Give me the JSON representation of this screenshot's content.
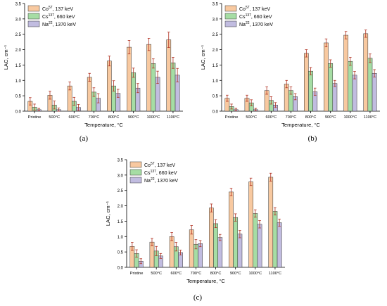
{
  "colors": {
    "co": "#F8C9A0",
    "cs": "#A6DDA4",
    "na": "#C1BCE0",
    "stroke": "#333333",
    "err": "#B03020"
  },
  "chart_data": [
    {
      "type": "bar",
      "panel_label": "(a)",
      "xlabel": "Temperature, °C",
      "ylabel": "LAC, cm⁻¹",
      "ylim": [
        0,
        3.5
      ],
      "yticks": [
        "0.0",
        "0.5",
        "1.0",
        "1.5",
        "2.0",
        "2.5",
        "3.0",
        "3.5"
      ],
      "categories": [
        "Pristine",
        "500°C",
        "600°C",
        "700°C",
        "800°C",
        "900°C",
        "1000°C",
        "1100°C"
      ],
      "legend": [
        {
          "base": "Co",
          "sup": "57",
          "rest": ", 137 keV"
        },
        {
          "base": "Cs",
          "sup": "137",
          "rest": ", 660 keV"
        },
        {
          "base": "Na",
          "sup": "22",
          "rest": ", 1370 keV"
        }
      ],
      "series": [
        {
          "values": [
            0.32,
            0.52,
            0.82,
            1.1,
            1.63,
            2.08,
            2.17,
            2.32
          ],
          "errors": [
            0.12,
            0.13,
            0.13,
            0.13,
            0.16,
            0.22,
            0.2,
            0.25
          ]
        },
        {
          "values": [
            0.13,
            0.2,
            0.32,
            0.62,
            0.82,
            1.25,
            1.55,
            1.57
          ],
          "errors": [
            0.1,
            0.13,
            0.13,
            0.14,
            0.17,
            0.15,
            0.15,
            0.18
          ]
        },
        {
          "values": [
            0.05,
            0.05,
            0.12,
            0.42,
            0.58,
            0.75,
            1.1,
            1.17
          ],
          "errors": [
            0.04,
            0.05,
            0.1,
            0.15,
            0.13,
            0.15,
            0.2,
            0.22
          ]
        }
      ]
    },
    {
      "type": "bar",
      "panel_label": "(b)",
      "xlabel": "Temperature, °C",
      "ylabel": "LAC, cm⁻¹",
      "ylim": [
        0,
        3.5
      ],
      "yticks": [
        "0.0",
        "0.5",
        "1.0",
        "1.5",
        "2.0",
        "2.5",
        "3.0",
        "3.5"
      ],
      "categories": [
        "Pristine",
        "500°C",
        "600°C",
        "700°C",
        "800°C",
        "900°C",
        "1000°C",
        "1100°C"
      ],
      "legend": [
        {
          "base": "Co",
          "sup": "57",
          "rest": ", 137 keV"
        },
        {
          "base": "Cs",
          "sup": "137",
          "rest": ", 660 keV"
        },
        {
          "base": "Na",
          "sup": "22",
          "rest": ", 1370 keV"
        }
      ],
      "series": [
        {
          "values": [
            0.42,
            0.42,
            0.67,
            0.88,
            1.88,
            2.22,
            2.47,
            2.52
          ],
          "errors": [
            0.1,
            0.1,
            0.12,
            0.12,
            0.12,
            0.13,
            0.12,
            0.12
          ]
        },
        {
          "values": [
            0.15,
            0.27,
            0.35,
            0.67,
            1.3,
            1.55,
            1.62,
            1.72
          ],
          "errors": [
            0.08,
            0.1,
            0.12,
            0.12,
            0.12,
            0.12,
            0.13,
            0.14
          ]
        },
        {
          "values": [
            0.05,
            0.05,
            0.2,
            0.47,
            0.63,
            0.9,
            1.17,
            1.23
          ],
          "errors": [
            0.04,
            0.04,
            0.08,
            0.1,
            0.12,
            0.1,
            0.12,
            0.12
          ]
        }
      ]
    },
    {
      "type": "bar",
      "panel_label": "(c)",
      "xlabel": "Temperature, °C",
      "ylabel": "LAC, cm⁻¹",
      "ylim": [
        0,
        3.5
      ],
      "yticks": [
        "0.0",
        "0.5",
        "1.0",
        "1.5",
        "2.0",
        "2.5",
        "3.0",
        "3.5"
      ],
      "categories": [
        "Pristine",
        "500°C",
        "600°C",
        "700°C",
        "800°C",
        "900°C",
        "1000°C",
        "1100°C"
      ],
      "legend": [
        {
          "base": "Co",
          "sup": "57",
          "rest": ", 137 keV"
        },
        {
          "base": "Cs",
          "sup": "137",
          "rest": ", 660 keV"
        },
        {
          "base": "Na",
          "sup": "22",
          "rest": ", 1370 keV"
        }
      ],
      "series": [
        {
          "values": [
            0.68,
            0.82,
            1.0,
            1.22,
            1.93,
            2.45,
            2.78,
            2.93
          ],
          "errors": [
            0.13,
            0.12,
            0.13,
            0.14,
            0.13,
            0.12,
            0.12,
            0.13
          ]
        },
        {
          "values": [
            0.45,
            0.53,
            0.67,
            0.75,
            1.42,
            1.62,
            1.75,
            1.82
          ],
          "errors": [
            0.12,
            0.15,
            0.14,
            0.15,
            0.13,
            0.12,
            0.12,
            0.12
          ]
        },
        {
          "values": [
            0.2,
            0.37,
            0.48,
            0.77,
            0.97,
            1.08,
            1.4,
            1.45
          ],
          "errors": [
            0.08,
            0.08,
            0.08,
            0.1,
            0.1,
            0.12,
            0.12,
            0.12
          ]
        }
      ]
    }
  ]
}
